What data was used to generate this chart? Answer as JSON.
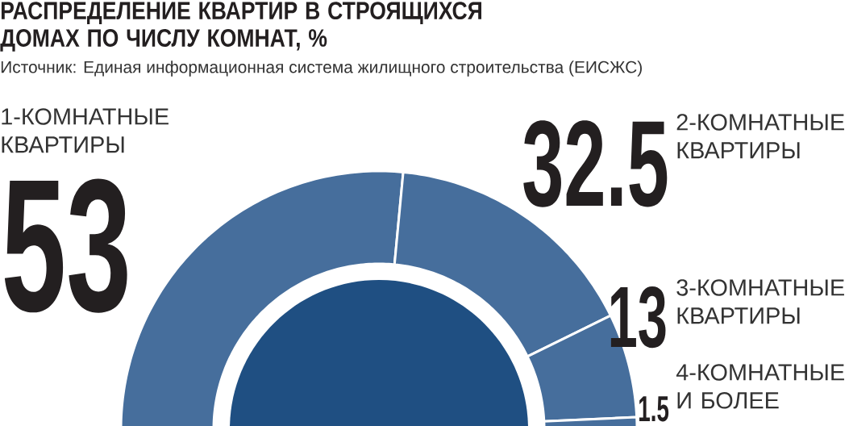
{
  "chart_data": {
    "type": "donut",
    "title": "РАСПРЕДЕЛЕНИЕ КВАРТИР В СТРОЯЩИХСЯ ДОМАХ ПО ЧИСЛУ КОМНАТ, %",
    "annotations": [
      "Источник: Единая информационная система жилищного строительства (ЕИСЖС)"
    ],
    "categories": [
      "1-КОМНАТНЫЕ КВАРТИРЫ",
      "2-КОМНАТНЫЕ КВАРТИРЫ",
      "3-КОМНАТНЫЕ КВАРТИРЫ",
      "4-КОМНАТНЫЕ И БОЛЕЕ"
    ],
    "values": [
      53,
      32.5,
      13,
      1.5
    ],
    "colors": [
      "#466e9c",
      "#466e9c",
      "#466e9c",
      "#466e9c"
    ],
    "data_labels": true
  }
}
